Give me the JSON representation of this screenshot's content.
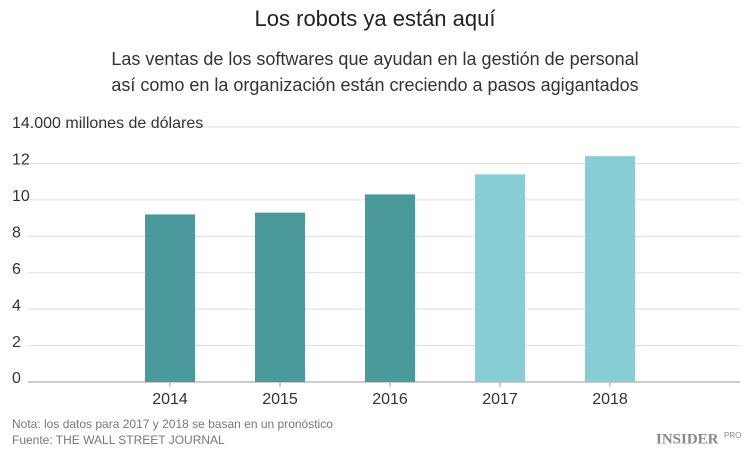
{
  "chart_data": {
    "type": "bar",
    "title": "Los robots ya están aquí",
    "subtitle": [
      "Las ventas de los softwares que ayudan en la gestión de personal",
      "así como en la organización están creciendo a pasos agigantados"
    ],
    "categories": [
      "2014",
      "2015",
      "2016",
      "2017",
      "2018"
    ],
    "values": [
      9.2,
      9.3,
      10.3,
      11.4,
      12.4
    ],
    "colors": [
      "#4a9a9c",
      "#4a9a9c",
      "#4a9a9c",
      "#86cdd6",
      "#86cdd6"
    ],
    "ylim": [
      0,
      14
    ],
    "yticks": [
      0,
      2,
      4,
      6,
      8,
      10,
      12,
      {
        "value": 14,
        "label": "14.000 millones de dólares"
      }
    ],
    "grid": true,
    "notes": [
      "Nota: los datos para 2017 y 2018 se basan en un pronóstico",
      "Fuente: THE WALL STREET JOURNAL"
    ],
    "logo": "INSIDER",
    "logo_suffix": "PRO"
  }
}
